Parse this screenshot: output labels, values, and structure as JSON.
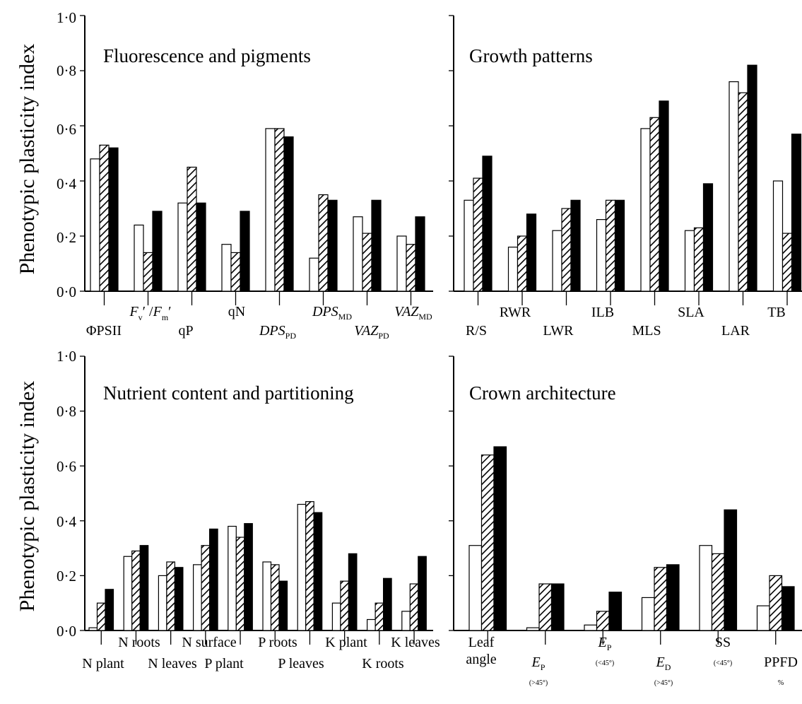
{
  "figure": {
    "ylabel": "Phenotypic plasticity index",
    "yticks": [
      "0·0",
      "0·2",
      "0·4",
      "0·6",
      "0·8",
      "1·0"
    ]
  },
  "colors": {
    "series_a": "#ffffff",
    "series_b": "hatched",
    "series_c": "#000000"
  },
  "chart_data": [
    {
      "type": "bar",
      "title": "Fluorescence and pigments",
      "ylabel": "Phenotypic plasticity index",
      "ylim": [
        0,
        1
      ],
      "grid": false,
      "categories": [
        "ΦPSII",
        "F′v/F′m",
        "qP",
        "qN",
        "DPS_PD",
        "DPS_MD",
        "VAZ_PD",
        "VAZ_MD"
      ],
      "series": [
        {
          "values": [
            0.48,
            0.24,
            0.32,
            0.17,
            0.59,
            0.12,
            0.27,
            0.2
          ]
        },
        {
          "values": [
            0.53,
            0.14,
            0.45,
            0.14,
            0.59,
            0.35,
            0.21,
            0.17
          ]
        },
        {
          "values": [
            0.52,
            0.29,
            0.32,
            0.29,
            0.56,
            0.33,
            0.33,
            0.27
          ]
        }
      ]
    },
    {
      "type": "bar",
      "title": "Growth patterns",
      "ylim": [
        0,
        1
      ],
      "grid": false,
      "categories": [
        "R/S",
        "RWR",
        "LWR",
        "ILB",
        "MLS",
        "SLA",
        "LAR",
        "TB"
      ],
      "series": [
        {
          "values": [
            0.33,
            0.16,
            0.22,
            0.26,
            0.59,
            0.22,
            0.76,
            0.4
          ]
        },
        {
          "values": [
            0.41,
            0.2,
            0.3,
            0.33,
            0.63,
            0.23,
            0.72,
            0.21
          ]
        },
        {
          "values": [
            0.49,
            0.28,
            0.33,
            0.33,
            0.69,
            0.39,
            0.82,
            0.57
          ]
        }
      ]
    },
    {
      "type": "bar",
      "title": "Nutrient content and partitioning",
      "ylabel": "Phenotypic plasticity index",
      "ylim": [
        0,
        1
      ],
      "grid": false,
      "categories": [
        "N plant",
        "N roots",
        "N leaves",
        "N surface",
        "P plant",
        "P roots",
        "P leaves",
        "K plant",
        "K roots",
        "K leaves"
      ],
      "series": [
        {
          "values": [
            0.01,
            0.27,
            0.2,
            0.24,
            0.38,
            0.25,
            0.46,
            0.1,
            0.04,
            0.07
          ]
        },
        {
          "values": [
            0.1,
            0.29,
            0.25,
            0.31,
            0.34,
            0.24,
            0.47,
            0.18,
            0.1,
            0.17
          ]
        },
        {
          "values": [
            0.15,
            0.31,
            0.23,
            0.37,
            0.39,
            0.18,
            0.43,
            0.28,
            0.19,
            0.27
          ]
        }
      ]
    },
    {
      "type": "bar",
      "title": "Crown architecture",
      "ylim": [
        0,
        1
      ],
      "grid": false,
      "categories": [
        "Leaf angle",
        "E_P (>45°)",
        "E_P (<45°)",
        "E_D (>45°)",
        "SS (<45°)",
        "PPFD %"
      ],
      "series": [
        {
          "values": [
            0.31,
            0.01,
            0.02,
            0.12,
            0.31,
            0.09
          ]
        },
        {
          "values": [
            0.64,
            0.17,
            0.07,
            0.23,
            0.28,
            0.2
          ]
        },
        {
          "values": [
            0.67,
            0.17,
            0.14,
            0.24,
            0.44,
            0.16
          ]
        }
      ]
    }
  ]
}
